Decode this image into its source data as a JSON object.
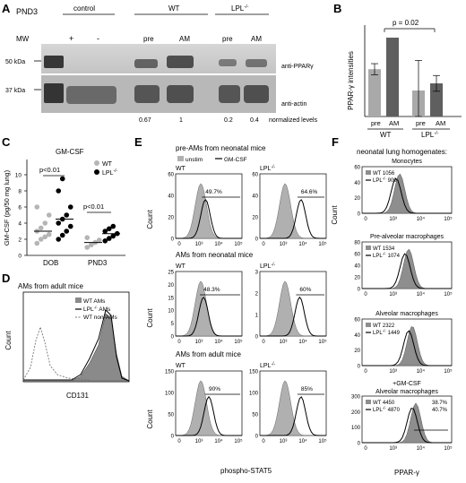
{
  "panel_letters": [
    "A",
    "B",
    "C",
    "D",
    "E",
    "F"
  ],
  "panelA": {
    "tag": "PND3",
    "groups": [
      "control",
      "WT",
      "LPL"
    ],
    "lpl_sup": "-/-",
    "plus": "+",
    "minus": "-",
    "lane_pre": "pre",
    "lane_am": "AM",
    "mw_label": "MW",
    "kda_top": "50 kDa",
    "kda_bottom": "37 kDa",
    "band_top": "anti-PPARγ",
    "band_bottom": "anti-actin",
    "levels": [
      "0.67",
      "1",
      "0.2",
      "0.4"
    ],
    "levels_label": "normalized levels"
  },
  "panelB": {
    "ylabel": "PPAR-γ intensities",
    "pvalue": "p = 0.02",
    "groups": [
      "WT",
      "LPL"
    ],
    "lpl_sup": "-/-",
    "bars": [
      {
        "label": "pre",
        "value": 0.6,
        "err": 0.07,
        "color": "#a9a9a9"
      },
      {
        "label": "AM",
        "value": 1.0,
        "err": 0.0,
        "color": "#5f5f5f"
      },
      {
        "label": "pre",
        "value": 0.33,
        "err": 0.38,
        "color": "#a9a9a9"
      },
      {
        "label": "AM",
        "value": 0.42,
        "err": 0.1,
        "color": "#5f5f5f"
      }
    ]
  },
  "panelC": {
    "title": "GM-CSF",
    "ylabel": "GM-CSF (pg/50 mg lung)",
    "yticks": [
      "0",
      "2",
      "4",
      "6",
      "8",
      "10"
    ],
    "xcats": [
      "DOB",
      "PND3"
    ],
    "legend_wt": "WT",
    "legend_lpl": "LPL",
    "lpl_sup": "-/-",
    "p1": "p<0.01",
    "p2": "p<0.01"
  },
  "panelD": {
    "title": "AMs from adult mice",
    "ylabel": "Count",
    "xlabel": "CD131",
    "legend": [
      "WT AMs",
      "LPL",
      "WT non-AMs"
    ],
    "lpl_suffix": " AMs",
    "lpl_sup": "-/-"
  },
  "panelE": {
    "legend_unstim": "unstim",
    "legend_gm": "GM-CSF",
    "rows": [
      {
        "title": "pre-AMs from neonatal mice",
        "wt_pct": "49.7%",
        "lpl_pct": "64.6%",
        "yticks": [
          "60",
          "40",
          "20",
          "0"
        ]
      },
      {
        "title": "AMs from neonatal mice",
        "wt_pct": "48.3%",
        "lpl_pct": "60%",
        "yticks": [
          "25",
          "20",
          "15",
          "10",
          "5",
          "0"
        ],
        "yticks_lpl": [
          "3",
          "2",
          "1",
          "0"
        ]
      },
      {
        "title": "AMs from adult mice",
        "wt_pct": "90%",
        "lpl_pct": "85%",
        "yticks": [
          "150",
          "100",
          "50",
          "0"
        ]
      }
    ],
    "wt": "WT",
    "lpl": "LPL",
    "lpl_sup": "-/-",
    "ylabel": "Count",
    "xlabel": "phospho-STAT5"
  },
  "panelF": {
    "header": "neonatal lung homogenates:",
    "ylabel": "Count",
    "xlabel": "PPAR-γ",
    "lpl_sup": "-/-",
    "subpanels": [
      {
        "title": "Monocytes",
        "wt": "WT 1056",
        "lpl": "LPL",
        "lpl_val": " 900"
      },
      {
        "title": "Pre-alveolar macrophages",
        "wt": "WT 1534",
        "lpl": "LPL",
        "lpl_val": " 1074"
      },
      {
        "title": "Alveolar macrophages",
        "wt": "WT 2322",
        "lpl": "LPL",
        "lpl_val": " 1449"
      },
      {
        "title": "+GM-CSF",
        "title2": "Alveolar macrophages",
        "wt": "WT 4450",
        "lpl": "LPL",
        "lpl_val": " 4870",
        "pct1": "38.7%",
        "pct2": "40.7%"
      }
    ],
    "yticks_s1": [
      "60",
      "40",
      "20",
      "0"
    ],
    "yticks_s2": [
      "80",
      "60",
      "40",
      "20",
      "0"
    ],
    "yticks_s3": [
      "300",
      "200",
      "100",
      "0"
    ]
  },
  "flow_ticks": [
    "0",
    "10³",
    "10⁴",
    "10⁵"
  ]
}
